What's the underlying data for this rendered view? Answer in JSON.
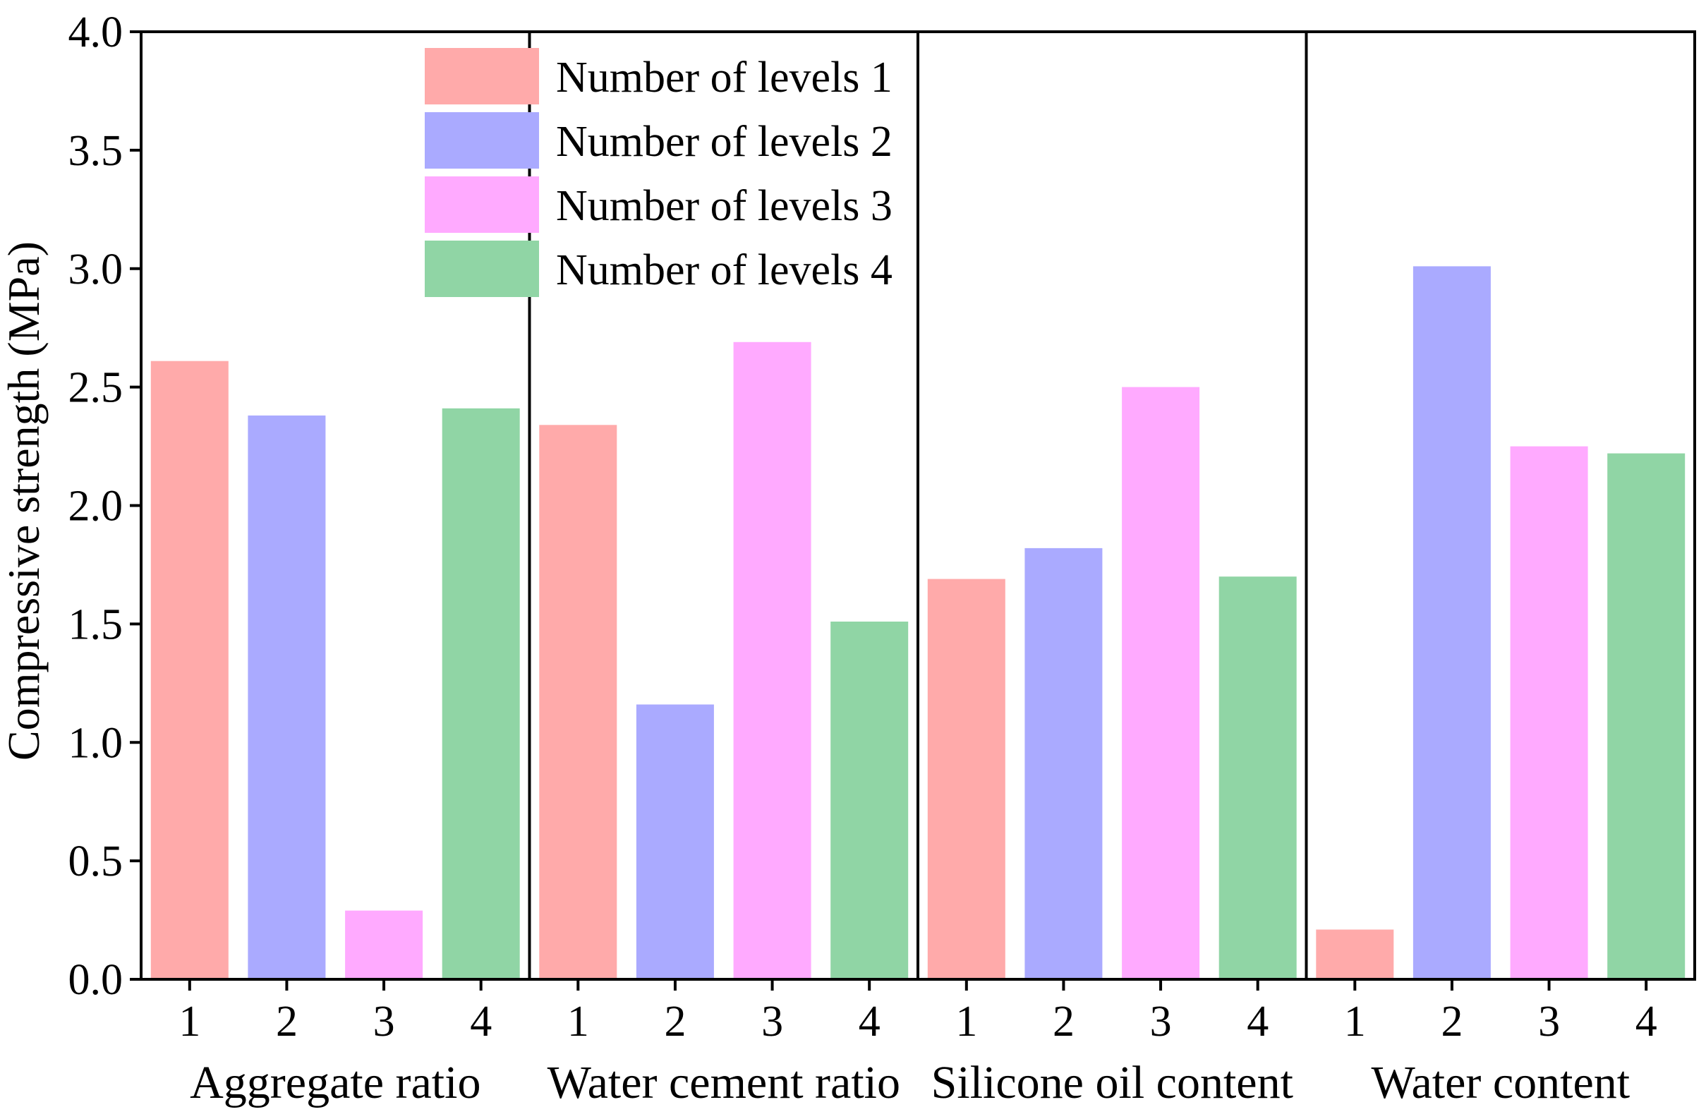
{
  "chart_data": {
    "type": "bar",
    "ylabel": "Compressive strength (MPa)",
    "ylim": [
      0.0,
      4.0
    ],
    "yticks": [
      "0.0",
      "0.5",
      "1.0",
      "1.5",
      "2.0",
      "2.5",
      "3.0",
      "3.5",
      "4.0"
    ],
    "ytick_values": [
      0.0,
      0.5,
      1.0,
      1.5,
      2.0,
      2.5,
      3.0,
      3.5,
      4.0
    ],
    "level_tick_labels": [
      "1",
      "2",
      "3",
      "4"
    ],
    "legend_position": "top-left",
    "series": [
      {
        "name": "Number of levels 1",
        "color": "#ffaaaa"
      },
      {
        "name": "Number of levels 2",
        "color": "#aaaaff"
      },
      {
        "name": "Number of levels 3",
        "color": "#ffaaff"
      },
      {
        "name": "Number of levels 4",
        "color": "#90d5a5"
      }
    ],
    "groups": [
      {
        "label": "Aggregate ratio",
        "values": [
          2.61,
          2.38,
          0.29,
          2.41
        ]
      },
      {
        "label": "Water cement ratio",
        "values": [
          2.34,
          1.16,
          2.69,
          1.51
        ]
      },
      {
        "label": "Silicone oil content",
        "values": [
          1.69,
          1.82,
          2.5,
          1.7
        ]
      },
      {
        "label": "Water content",
        "values": [
          0.21,
          3.01,
          2.25,
          2.22
        ]
      }
    ]
  }
}
